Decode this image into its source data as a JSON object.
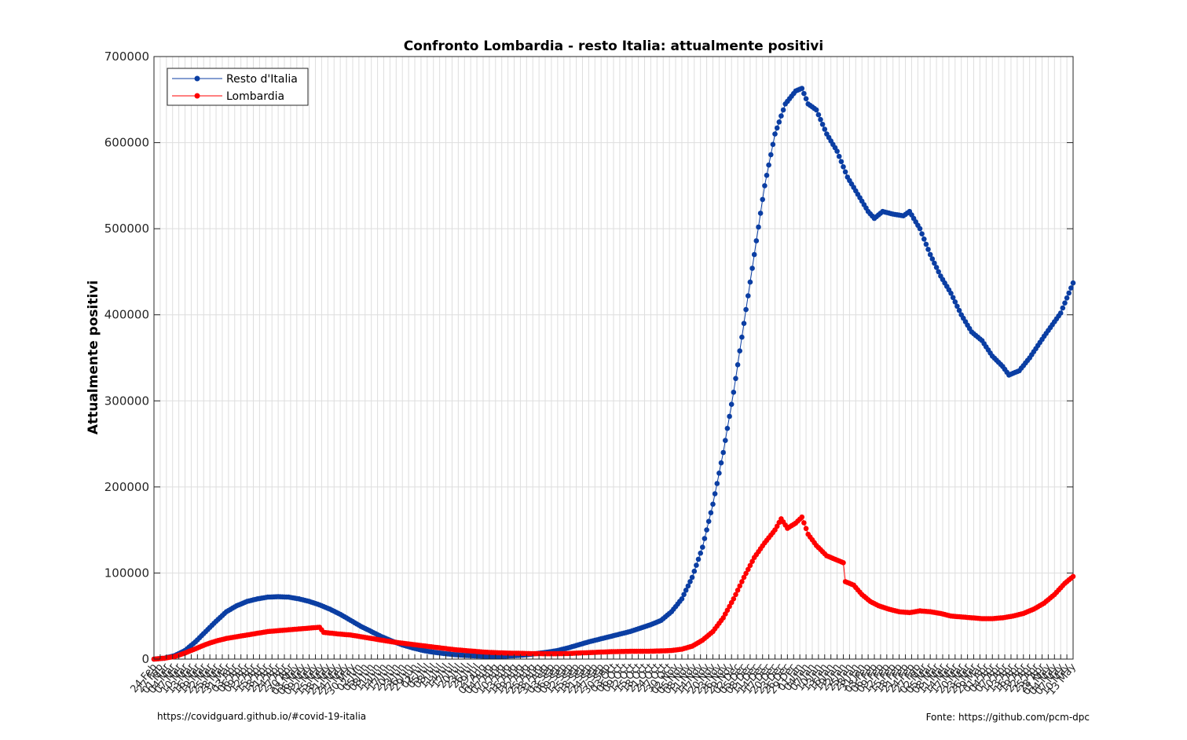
{
  "chart_data": {
    "type": "line",
    "title": "Confronto Lombardia - resto Italia: attualmente positivi",
    "ylabel": "Attualmente positivi",
    "xlabel": "",
    "ylim": [
      0,
      700000
    ],
    "yticks": [
      0,
      100000,
      200000,
      300000,
      400000,
      500000,
      600000,
      700000
    ],
    "x_start": "24 Feb",
    "x_days": 385,
    "xtick_step_days": 3,
    "grid": true,
    "legend_position": "top-left",
    "series": [
      {
        "name": "Resto d'Italia",
        "color": "#0b3ea3",
        "anchors": [
          [
            0,
            0
          ],
          [
            5,
            1000
          ],
          [
            10,
            4000
          ],
          [
            15,
            10000
          ],
          [
            20,
            20000
          ],
          [
            25,
            32000
          ],
          [
            30,
            44000
          ],
          [
            35,
            55000
          ],
          [
            40,
            62000
          ],
          [
            45,
            67000
          ],
          [
            50,
            70000
          ],
          [
            55,
            72000
          ],
          [
            60,
            72500
          ],
          [
            65,
            72000
          ],
          [
            70,
            70000
          ],
          [
            75,
            67000
          ],
          [
            80,
            63000
          ],
          [
            85,
            58000
          ],
          [
            90,
            52000
          ],
          [
            95,
            45000
          ],
          [
            100,
            38000
          ],
          [
            105,
            32000
          ],
          [
            110,
            26000
          ],
          [
            115,
            21000
          ],
          [
            120,
            16500
          ],
          [
            125,
            13000
          ],
          [
            130,
            10000
          ],
          [
            135,
            8000
          ],
          [
            140,
            6500
          ],
          [
            145,
            5200
          ],
          [
            150,
            4300
          ],
          [
            155,
            3700
          ],
          [
            160,
            3300
          ],
          [
            165,
            3200
          ],
          [
            170,
            3400
          ],
          [
            175,
            4000
          ],
          [
            180,
            5000
          ],
          [
            185,
            6500
          ],
          [
            190,
            8000
          ],
          [
            195,
            10000
          ],
          [
            200,
            13000
          ],
          [
            205,
            16500
          ],
          [
            210,
            20000
          ],
          [
            215,
            23000
          ],
          [
            220,
            26000
          ],
          [
            225,
            29000
          ],
          [
            230,
            32000
          ],
          [
            235,
            36000
          ],
          [
            240,
            40000
          ],
          [
            245,
            45000
          ],
          [
            250,
            55000
          ],
          [
            255,
            70000
          ],
          [
            260,
            95000
          ],
          [
            265,
            130000
          ],
          [
            270,
            180000
          ],
          [
            275,
            240000
          ],
          [
            280,
            310000
          ],
          [
            285,
            390000
          ],
          [
            290,
            470000
          ],
          [
            295,
            550000
          ],
          [
            300,
            610000
          ],
          [
            305,
            645000
          ],
          [
            310,
            660000
          ],
          [
            313,
            663000
          ],
          [
            316,
            645000
          ],
          [
            320,
            638000
          ],
          [
            325,
            610000
          ],
          [
            330,
            590000
          ],
          [
            335,
            560000
          ],
          [
            340,
            540000
          ],
          [
            345,
            520000
          ],
          [
            348,
            512000
          ],
          [
            352,
            520000
          ],
          [
            357,
            517000
          ],
          [
            362,
            515000
          ],
          [
            365,
            520000
          ],
          [
            370,
            500000
          ],
          [
            375,
            470000
          ],
          [
            380,
            445000
          ],
          [
            385,
            425000
          ],
          [
            390,
            400000
          ],
          [
            395,
            380000
          ],
          [
            400,
            370000
          ],
          [
            405,
            352000
          ],
          [
            410,
            340000
          ],
          [
            413,
            330000
          ],
          [
            418,
            335000
          ],
          [
            423,
            350000
          ],
          [
            430,
            375000
          ],
          [
            438,
            402000
          ],
          [
            444,
            437000
          ]
        ]
      },
      {
        "name": "Lombardia",
        "color": "#ff0000",
        "anchors": [
          [
            0,
            0
          ],
          [
            5,
            1000
          ],
          [
            10,
            3000
          ],
          [
            15,
            7000
          ],
          [
            20,
            12000
          ],
          [
            25,
            17000
          ],
          [
            30,
            21000
          ],
          [
            35,
            24000
          ],
          [
            40,
            26000
          ],
          [
            45,
            28000
          ],
          [
            50,
            30000
          ],
          [
            55,
            32000
          ],
          [
            60,
            33000
          ],
          [
            65,
            34000
          ],
          [
            70,
            35000
          ],
          [
            75,
            36000
          ],
          [
            80,
            37000
          ],
          [
            82,
            31000
          ],
          [
            90,
            29000
          ],
          [
            95,
            28000
          ],
          [
            100,
            26000
          ],
          [
            105,
            24000
          ],
          [
            110,
            22000
          ],
          [
            115,
            20000
          ],
          [
            120,
            18500
          ],
          [
            125,
            17000
          ],
          [
            130,
            15500
          ],
          [
            135,
            14000
          ],
          [
            140,
            12500
          ],
          [
            145,
            11000
          ],
          [
            150,
            10000
          ],
          [
            155,
            9000
          ],
          [
            160,
            8000
          ],
          [
            165,
            7500
          ],
          [
            170,
            7000
          ],
          [
            175,
            6800
          ],
          [
            180,
            6500
          ],
          [
            185,
            6300
          ],
          [
            190,
            6200
          ],
          [
            195,
            6200
          ],
          [
            200,
            6500
          ],
          [
            205,
            7000
          ],
          [
            210,
            7500
          ],
          [
            215,
            8000
          ],
          [
            220,
            8500
          ],
          [
            225,
            8800
          ],
          [
            230,
            9000
          ],
          [
            235,
            9000
          ],
          [
            240,
            9200
          ],
          [
            245,
            9500
          ],
          [
            250,
            10000
          ],
          [
            255,
            11500
          ],
          [
            260,
            15000
          ],
          [
            265,
            22000
          ],
          [
            270,
            32000
          ],
          [
            275,
            48000
          ],
          [
            280,
            70000
          ],
          [
            285,
            95000
          ],
          [
            290,
            118000
          ],
          [
            295,
            135000
          ],
          [
            300,
            150000
          ],
          [
            303,
            163000
          ],
          [
            306,
            152000
          ],
          [
            310,
            158000
          ],
          [
            313,
            165000
          ],
          [
            316,
            145000
          ],
          [
            320,
            132000
          ],
          [
            325,
            120000
          ],
          [
            330,
            115000
          ],
          [
            333,
            112000
          ],
          [
            334,
            90000
          ],
          [
            338,
            86000
          ],
          [
            342,
            75000
          ],
          [
            346,
            67000
          ],
          [
            350,
            62000
          ],
          [
            355,
            58000
          ],
          [
            360,
            55000
          ],
          [
            365,
            54000
          ],
          [
            370,
            56000
          ],
          [
            375,
            55000
          ],
          [
            380,
            53000
          ],
          [
            385,
            50000
          ],
          [
            390,
            49000
          ],
          [
            395,
            48000
          ],
          [
            400,
            47000
          ],
          [
            405,
            47000
          ],
          [
            410,
            48000
          ],
          [
            415,
            50000
          ],
          [
            420,
            53000
          ],
          [
            425,
            58000
          ],
          [
            430,
            65000
          ],
          [
            435,
            75000
          ],
          [
            440,
            88000
          ],
          [
            444,
            96000
          ]
        ]
      }
    ]
  },
  "footer": {
    "left": "https://covidguard.github.io/#covid-19-italia",
    "right": "Fonte: https://github.com/pcm-dpc"
  }
}
